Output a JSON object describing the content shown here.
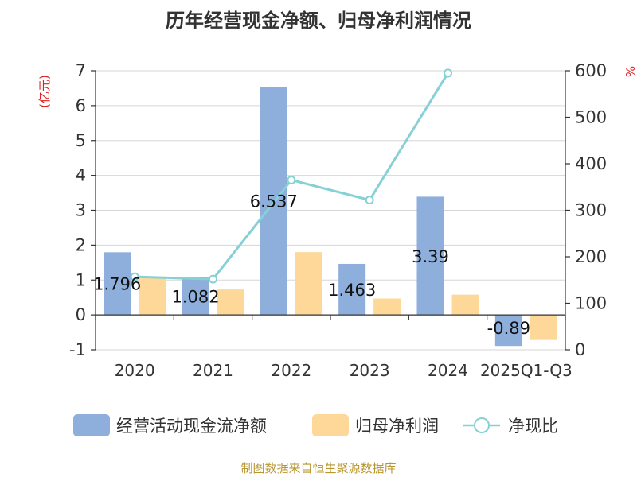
{
  "chart_data": {
    "type": "bar",
    "title": "历年经营现金净额、归母净利润情况",
    "left_unit": "(亿元)",
    "right_unit": "%",
    "categories": [
      "2020",
      "2021",
      "2022",
      "2023",
      "2024",
      "2025Q1-Q3"
    ],
    "left_axis": {
      "min": -1,
      "max": 7,
      "ticks": [
        "-1",
        "0",
        "1",
        "2",
        "3",
        "4",
        "5",
        "6",
        "7"
      ]
    },
    "right_axis": {
      "min": 0,
      "max": 600,
      "ticks": [
        "0",
        "100",
        "200",
        "300",
        "400",
        "500",
        "600"
      ]
    },
    "series": [
      {
        "name": "经营活动现金流净额",
        "type": "bar",
        "axis": "left",
        "color": "#8eaedc",
        "values": [
          1.796,
          1.082,
          6.537,
          1.463,
          3.39,
          -0.89
        ],
        "labels": [
          "1.796",
          "1.082",
          "6.537",
          "1.463",
          "3.39",
          "-0.89"
        ]
      },
      {
        "name": "归母净利润",
        "type": "bar",
        "axis": "left",
        "color": "#fdd898",
        "values": [
          1.1,
          0.73,
          1.8,
          0.47,
          0.58,
          -0.72
        ]
      },
      {
        "name": "净现比",
        "type": "line",
        "axis": "right",
        "color": "#85d1d6",
        "values": [
          157,
          152,
          365,
          322,
          595,
          null
        ]
      }
    ],
    "grid": true,
    "legend_position": "bottom",
    "source": "制图数据来自恒生聚源数据库"
  }
}
